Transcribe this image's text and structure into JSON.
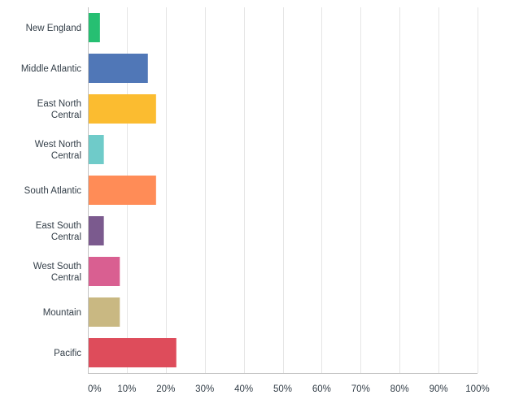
{
  "chart_data": {
    "type": "bar",
    "orientation": "horizontal",
    "title": "",
    "xlabel": "",
    "ylabel": "",
    "xlim": [
      0,
      100
    ],
    "grid": true,
    "legend": "none",
    "categories": [
      "New England",
      "Middle Atlantic",
      "East North Central",
      "West North Central",
      "South Atlantic",
      "East South Central",
      "West South Central",
      "Mountain",
      "Pacific"
    ],
    "category_lines": [
      [
        "New England"
      ],
      [
        "Middle Atlantic"
      ],
      [
        "East North",
        "Central"
      ],
      [
        "West North",
        "Central"
      ],
      [
        "South Atlantic"
      ],
      [
        "East South",
        "Central"
      ],
      [
        "West South",
        "Central"
      ],
      [
        "Mountain"
      ],
      [
        "Pacific"
      ]
    ],
    "values": [
      3.1,
      15.4,
      17.5,
      4.1,
      17.5,
      4.1,
      8.2,
      8.2,
      22.7
    ],
    "colors": [
      "#26bf72",
      "#5077b7",
      "#fbbc30",
      "#6fcbc9",
      "#ff8c57",
      "#7b5a8e",
      "#d95f91",
      "#c9b882",
      "#de4c5b"
    ],
    "ticks": [
      0,
      10,
      20,
      30,
      40,
      50,
      60,
      70,
      80,
      90,
      100
    ],
    "tick_labels": [
      "0%",
      "10%",
      "20%",
      "30%",
      "40%",
      "50%",
      "60%",
      "70%",
      "80%",
      "90%",
      "100%"
    ]
  }
}
